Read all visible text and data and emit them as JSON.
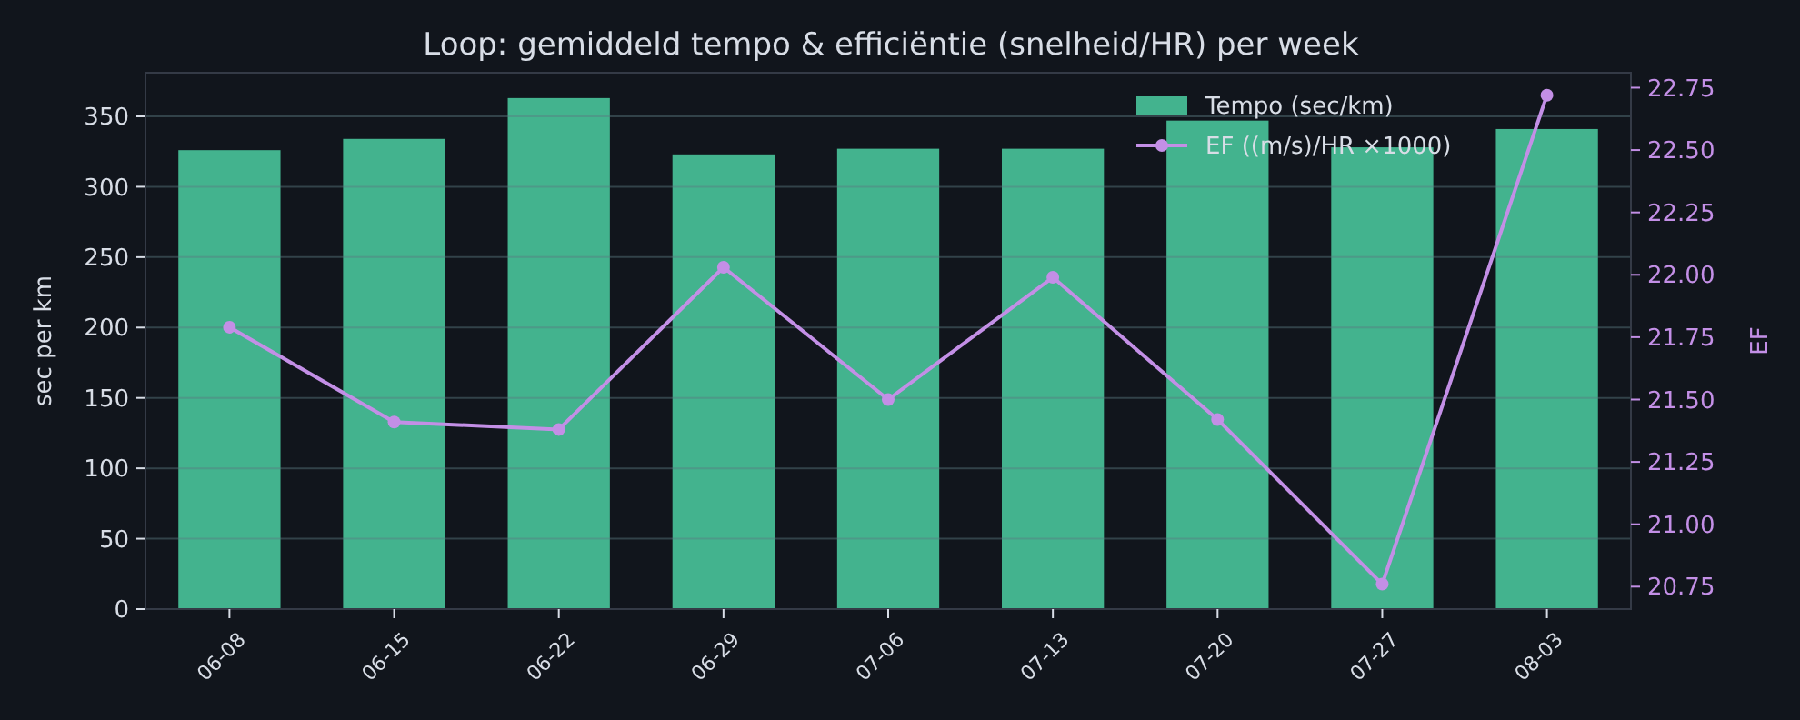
{
  "chart_data": {
    "type": "bar",
    "title": "Loop: gemiddeld tempo & efficiëntie (snelheid/HR) per week",
    "ylabel": "sec per km",
    "y2label": "EF",
    "categories": [
      "06-08",
      "06-15",
      "06-22",
      "06-29",
      "07-06",
      "07-13",
      "07-20",
      "07-27",
      "08-03"
    ],
    "series": [
      {
        "name": "Tempo (sec/km)",
        "color": "#43b38e",
        "values": [
          326,
          334,
          363,
          323,
          327,
          327,
          347,
          328,
          341
        ]
      },
      {
        "name": "EF ((m/s)/HR ×1000)",
        "type": "line",
        "axis": "y2",
        "color": "#c38fe6",
        "marker": "circle",
        "values": [
          21.79,
          21.41,
          21.38,
          22.03,
          21.5,
          21.99,
          21.42,
          20.76,
          22.72
        ]
      }
    ],
    "ylim": [
      0,
      381
    ],
    "yticks": [
      0,
      50,
      100,
      150,
      200,
      250,
      300,
      350
    ],
    "y2lim": [
      20.66,
      22.81
    ],
    "y2ticks": [
      {
        "value": 20.75,
        "label": "20.75"
      },
      {
        "value": 21,
        "label": "21.00"
      },
      {
        "value": 21.25,
        "label": "21.25"
      },
      {
        "value": 21.5,
        "label": "21.50"
      },
      {
        "value": 21.75,
        "label": "21.75"
      },
      {
        "value": 22,
        "label": "22.00"
      },
      {
        "value": 22.25,
        "label": "22.25"
      },
      {
        "value": 22.5,
        "label": "22.50"
      },
      {
        "value": 22.75,
        "label": "22.75"
      }
    ],
    "grid": "y",
    "legend": "top right"
  }
}
